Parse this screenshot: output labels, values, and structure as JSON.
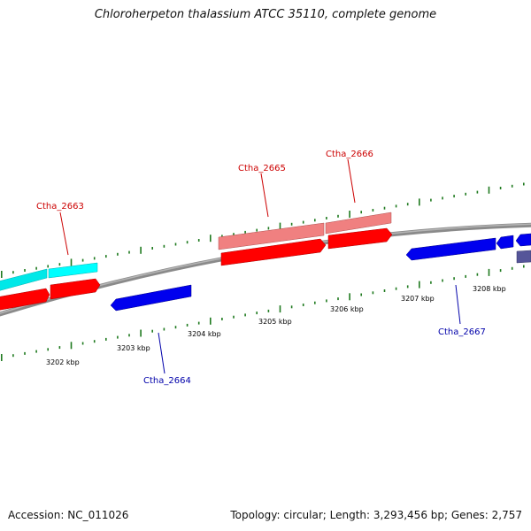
{
  "header": {
    "title": "Chloroherpeton thalassium ATCC 35110, complete genome"
  },
  "footer": {
    "accession": "Accession: NC_011026",
    "stats": "Topology: circular; Length: 3,293,456 bp; Genes: 2,757"
  },
  "colors": {
    "backbone": "#8a8a8a",
    "tick": "#1f7a1f",
    "forward_cds": "#ff0000",
    "forward_light": "#f08080",
    "forward_cyan": "#00ffff",
    "reverse_cds": "#0000ff",
    "reverse_dark": "#555599",
    "forward_label": "#cc0000",
    "reverse_label": "#0000aa"
  },
  "ticks": [
    {
      "label": "3202 kbp"
    },
    {
      "label": "3203 kbp"
    },
    {
      "label": "3204 kbp"
    },
    {
      "label": "3205 kbp"
    },
    {
      "label": "3206 kbp"
    },
    {
      "label": "3207 kbp"
    },
    {
      "label": "3208 kbp"
    }
  ],
  "genes": [
    {
      "label": "Ctha_2663",
      "strand": "forward"
    },
    {
      "label": "Ctha_2664",
      "strand": "reverse"
    },
    {
      "label": "Ctha_2665",
      "strand": "forward"
    },
    {
      "label": "Ctha_2666",
      "strand": "forward"
    },
    {
      "label": "Ctha_2667",
      "strand": "reverse"
    }
  ]
}
